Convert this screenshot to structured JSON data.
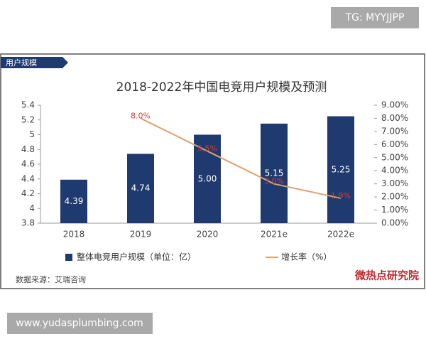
{
  "watermark": "TG: MYYJJPP",
  "footer": "www.yudasplumbing.com",
  "tab": "用户规模",
  "chart_data": {
    "type": "bar",
    "title": "2018-2022年中国电竞用户规模及预测",
    "categories": [
      "2018",
      "2019",
      "2020",
      "2021e",
      "2022e"
    ],
    "series": [
      {
        "name": "整体电竞用户规模（单位：亿）",
        "type": "bar",
        "color": "#1f3a6e",
        "values": [
          4.39,
          4.74,
          5.0,
          5.15,
          5.25
        ],
        "value_labels": [
          "4.39",
          "4.74",
          "5.00",
          "5.15",
          "5.25"
        ]
      },
      {
        "name": "增长率（%）",
        "type": "line",
        "axis": "y2",
        "color": "#e0a070",
        "values": [
          null,
          8.0,
          5.5,
          3.0,
          1.9
        ],
        "value_labels": [
          null,
          "8.0%",
          "5.5%",
          "3.0%",
          "1.9%"
        ]
      }
    ],
    "ylim": [
      3.8,
      5.4
    ],
    "yticks": [
      3.8,
      4,
      4.2,
      4.4,
      4.6,
      4.8,
      5,
      5.2,
      5.4
    ],
    "y2lim": [
      0,
      9
    ],
    "y2ticks": [
      {
        "value": 0,
        "label": "0.00%"
      },
      {
        "value": 1,
        "label": "1.00%"
      },
      {
        "value": 2,
        "label": "2.00%"
      },
      {
        "value": 3,
        "label": "3.00%"
      },
      {
        "value": 4,
        "label": "4.00%"
      },
      {
        "value": 5,
        "label": "5.00%"
      },
      {
        "value": 6,
        "label": "6.00%"
      },
      {
        "value": 7,
        "label": "7.00%"
      },
      {
        "value": 8,
        "label": "8.00%"
      },
      {
        "value": 9,
        "label": "9.00%"
      }
    ],
    "source": "数据来源：艾瑞咨询",
    "logo": "微热点研究院"
  }
}
